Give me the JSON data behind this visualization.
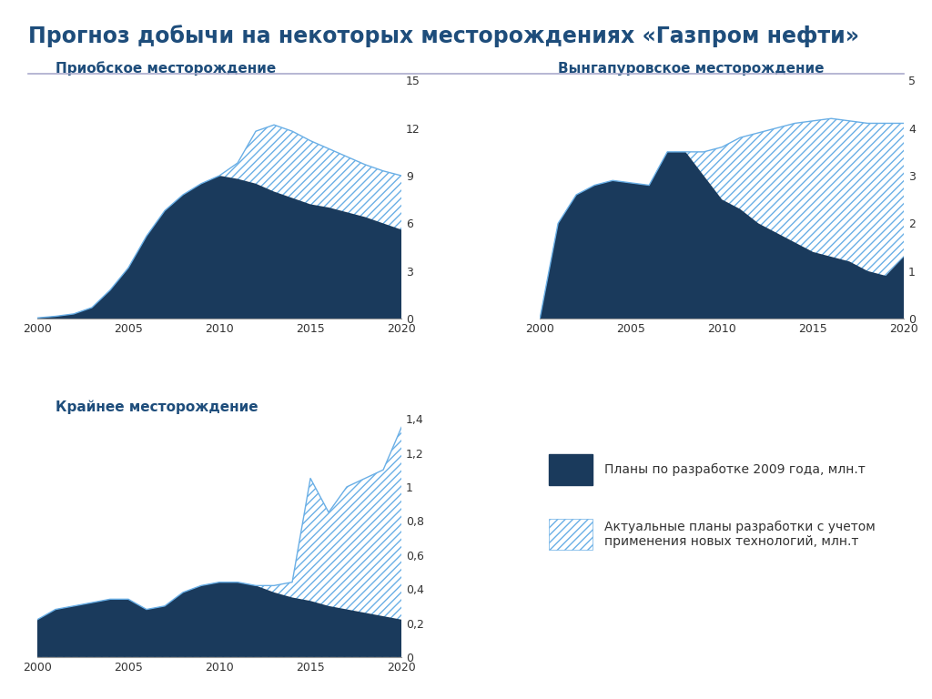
{
  "title": "Прогноз добычи на некоторых месторождениях «Газпром нефти»",
  "title_color": "#1e4d7b",
  "background_color": "#ffffff",
  "plot_background": "#ffffff",
  "dark_blue": "#1a3a5c",
  "hatch_edge_color": "#6aafe6",
  "subplot1_title": "Приобское месторождение",
  "subplot2_title": "Вынгапуровское месторождение",
  "subplot3_title": "Крайнее месторождение",
  "years": [
    2000,
    2001,
    2002,
    2003,
    2004,
    2005,
    2006,
    2007,
    2008,
    2009,
    2010,
    2011,
    2012,
    2013,
    2014,
    2015,
    2016,
    2017,
    2018,
    2019,
    2020
  ],
  "plot1_plan": [
    0.05,
    0.15,
    0.3,
    0.7,
    1.8,
    3.2,
    5.2,
    6.8,
    7.8,
    8.5,
    9.0,
    8.8,
    8.5,
    8.0,
    7.6,
    7.2,
    7.0,
    6.7,
    6.4,
    6.0,
    5.6
  ],
  "plot1_actual": [
    0.05,
    0.15,
    0.3,
    0.7,
    1.8,
    3.2,
    5.2,
    6.8,
    7.8,
    8.5,
    9.0,
    9.8,
    11.8,
    12.2,
    11.8,
    11.2,
    10.7,
    10.2,
    9.7,
    9.3,
    9.0
  ],
  "plot1_ylim": [
    0,
    15
  ],
  "plot1_yticks": [
    0,
    3,
    6,
    9,
    12,
    15
  ],
  "plot2_plan": [
    0.0,
    2.0,
    2.6,
    2.8,
    2.9,
    2.85,
    2.8,
    3.5,
    3.5,
    3.0,
    2.5,
    2.3,
    2.0,
    1.8,
    1.6,
    1.4,
    1.3,
    1.2,
    1.0,
    0.9,
    1.3
  ],
  "plot2_actual": [
    0.0,
    2.0,
    2.6,
    2.8,
    2.9,
    2.85,
    2.8,
    3.5,
    3.5,
    3.5,
    3.6,
    3.8,
    3.9,
    4.0,
    4.1,
    4.15,
    4.2,
    4.15,
    4.1,
    4.1,
    4.1
  ],
  "plot2_ylim": [
    0,
    5
  ],
  "plot2_yticks": [
    0,
    1,
    2,
    3,
    4,
    5
  ],
  "plot3_plan": [
    0.22,
    0.28,
    0.3,
    0.32,
    0.34,
    0.34,
    0.28,
    0.3,
    0.38,
    0.42,
    0.44,
    0.44,
    0.42,
    0.38,
    0.35,
    0.33,
    0.3,
    0.28,
    0.26,
    0.24,
    0.22
  ],
  "plot3_actual": [
    0.22,
    0.28,
    0.3,
    0.32,
    0.34,
    0.34,
    0.28,
    0.3,
    0.38,
    0.42,
    0.44,
    0.44,
    0.42,
    0.42,
    0.44,
    1.05,
    0.85,
    1.0,
    1.05,
    1.1,
    1.35
  ],
  "plot3_ylim": [
    0,
    1.4
  ],
  "plot3_yticks": [
    0,
    0.2,
    0.4,
    0.6,
    0.8,
    1.0,
    1.2,
    1.4
  ],
  "legend_label1": "Планы по разработке 2009 года, млн.т",
  "legend_label2": "Актуальные планы разработки с учетом\nприменения новых технологий, млн.т"
}
